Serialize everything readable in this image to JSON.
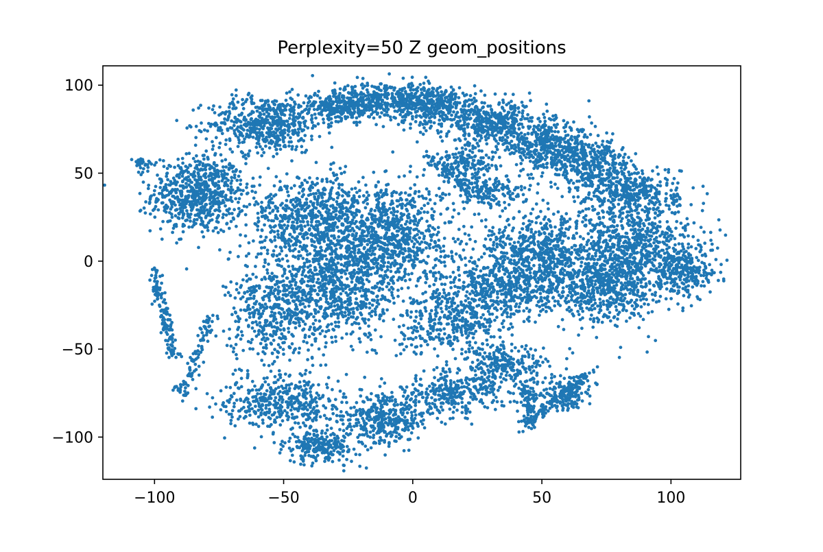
{
  "chart_data": {
    "type": "scatter",
    "title": "Perplexity=50 Z geom_positions",
    "xlabel": "",
    "ylabel": "",
    "xlim": [
      -120,
      127
    ],
    "ylim": [
      -124,
      111
    ],
    "xticks": [
      -100,
      -50,
      0,
      50,
      100
    ],
    "yticks": [
      100,
      50,
      0,
      -50,
      -100
    ],
    "xtick_labels": [
      "−100",
      "−50",
      "0",
      "50",
      "100"
    ],
    "ytick_labels": [
      "100",
      "50",
      "0",
      "−50",
      "−100"
    ],
    "grid": false,
    "legend": "none",
    "marker_color": "#1f77b4",
    "series": [
      {
        "clusters": [
          {
            "cx": -83,
            "cy": 38,
            "sx": 9,
            "sy": 11,
            "n": 700
          },
          {
            "cx": -57,
            "cy": 78,
            "sx": 11,
            "sy": 8,
            "n": 550
          },
          {
            "cx": -28,
            "cy": 88,
            "sx": 8,
            "sy": 4,
            "n": 300
          },
          {
            "cx": -10,
            "cy": 92,
            "sx": 10,
            "sy": 5,
            "n": 350
          },
          {
            "cx": 10,
            "cy": 88,
            "sx": 9,
            "sy": 6,
            "n": 350
          },
          {
            "cx": 32,
            "cy": 78,
            "sx": 10,
            "sy": 6,
            "n": 400
          },
          {
            "cx": 52,
            "cy": 65,
            "sx": 9,
            "sy": 6,
            "n": 400
          },
          {
            "cx": 68,
            "cy": 55,
            "sx": 8,
            "sy": 7,
            "n": 350
          },
          {
            "cx": 85,
            "cy": 40,
            "sx": 9,
            "sy": 7,
            "n": 350
          },
          {
            "cx": 20,
            "cy": 55,
            "sx": 6,
            "sy": 5,
            "n": 150
          },
          {
            "cx": 30,
            "cy": 40,
            "sx": 8,
            "sy": 4,
            "n": 150
          },
          {
            "cx": -40,
            "cy": 25,
            "sx": 12,
            "sy": 12,
            "n": 600
          },
          {
            "cx": -10,
            "cy": 15,
            "sx": 12,
            "sy": 16,
            "n": 900
          },
          {
            "cx": -30,
            "cy": -15,
            "sx": 12,
            "sy": 16,
            "n": 800
          },
          {
            "cx": -55,
            "cy": -30,
            "sx": 8,
            "sy": 14,
            "n": 400
          },
          {
            "cx": -50,
            "cy": -80,
            "sx": 12,
            "sy": 8,
            "n": 450
          },
          {
            "cx": -35,
            "cy": -105,
            "sx": 7,
            "sy": 5,
            "n": 250
          },
          {
            "cx": -10,
            "cy": -90,
            "sx": 8,
            "sy": 7,
            "n": 350
          },
          {
            "cx": 15,
            "cy": -75,
            "sx": 10,
            "sy": 6,
            "n": 300
          },
          {
            "cx": 35,
            "cy": -60,
            "sx": 8,
            "sy": 6,
            "n": 250
          },
          {
            "cx": 15,
            "cy": -35,
            "sx": 10,
            "sy": 9,
            "n": 350
          },
          {
            "cx": 35,
            "cy": -15,
            "sx": 12,
            "sy": 10,
            "n": 500
          },
          {
            "cx": 50,
            "cy": 5,
            "sx": 12,
            "sy": 12,
            "n": 600
          },
          {
            "cx": 75,
            "cy": -15,
            "sx": 12,
            "sy": 10,
            "n": 600
          },
          {
            "cx": 85,
            "cy": 10,
            "sx": 12,
            "sy": 12,
            "n": 650
          },
          {
            "cx": 105,
            "cy": -5,
            "sx": 6,
            "sy": 7,
            "n": 250
          },
          {
            "cx": 45,
            "cy": -80,
            "sx": 2,
            "sy": 8,
            "n": 100
          },
          {
            "cx": 60,
            "cy": -75,
            "sx": 5,
            "sy": 5,
            "n": 150
          }
        ],
        "strands": [
          {
            "x0": -108,
            "y0": 57,
            "x1": -102,
            "y1": 55,
            "n": 25
          },
          {
            "x0": -101,
            "y0": -4,
            "x1": -92,
            "y1": -55,
            "n": 130
          },
          {
            "x0": -78,
            "y0": -30,
            "x1": -88,
            "y1": -72,
            "n": 80
          },
          {
            "x0": -92,
            "y0": -71,
            "x1": -87,
            "y1": -76,
            "n": 20
          },
          {
            "x0": 44,
            "y0": -92,
            "x1": 70,
            "y1": -62,
            "n": 110
          },
          {
            "x0": 5,
            "y0": 60,
            "x1": 30,
            "y1": 32,
            "n": 80
          }
        ]
      }
    ]
  }
}
